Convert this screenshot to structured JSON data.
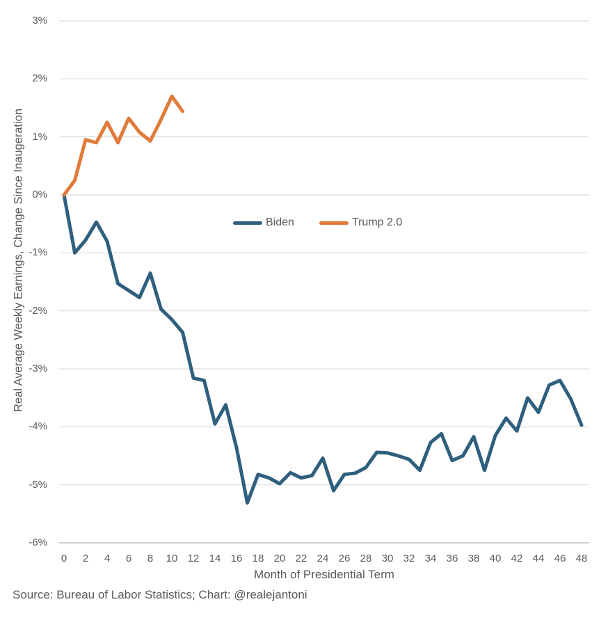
{
  "chart_data": {
    "type": "line",
    "title": "",
    "xlabel": "Month of Presidential Term",
    "ylabel": "Real Average Weekly Earnings, Change Since Inaugeration",
    "xlim": [
      0,
      48
    ],
    "ylim": [
      -6,
      3
    ],
    "grid": "horizontal-only",
    "legend_position": "inside-center",
    "y_ticks": [
      "3%",
      "2%",
      "1%",
      "0%",
      "-1%",
      "-2%",
      "-3%",
      "-4%",
      "-5%",
      "-6%"
    ],
    "y_tick_values": [
      3,
      2,
      1,
      0,
      -1,
      -2,
      -3,
      -4,
      -5,
      -6
    ],
    "x_ticks": [
      0,
      2,
      4,
      6,
      8,
      10,
      12,
      14,
      16,
      18,
      20,
      22,
      24,
      26,
      28,
      30,
      32,
      34,
      36,
      38,
      40,
      42,
      44,
      46,
      48
    ],
    "series": [
      {
        "name": "Biden",
        "color": "#2E5F7E",
        "x": [
          0,
          1,
          2,
          3,
          4,
          5,
          6,
          7,
          8,
          9,
          10,
          11,
          12,
          13,
          14,
          15,
          16,
          17,
          18,
          19,
          20,
          21,
          22,
          23,
          24,
          25,
          26,
          27,
          28,
          29,
          30,
          31,
          32,
          33,
          34,
          35,
          36,
          37,
          38,
          39,
          40,
          41,
          42,
          43,
          44,
          45,
          46,
          47,
          48
        ],
        "values": [
          0.0,
          -1.0,
          -0.78,
          -0.47,
          -0.8,
          -1.53,
          -1.65,
          -1.77,
          -1.35,
          -1.97,
          -2.15,
          -2.37,
          -3.16,
          -3.2,
          -3.95,
          -3.62,
          -4.36,
          -5.31,
          -4.82,
          -4.88,
          -4.98,
          -4.79,
          -4.88,
          -4.84,
          -4.54,
          -5.1,
          -4.82,
          -4.8,
          -4.7,
          -4.44,
          -4.45,
          -4.5,
          -4.56,
          -4.75,
          -4.27,
          -4.12,
          -4.58,
          -4.5,
          -4.17,
          -4.75,
          -4.15,
          -3.85,
          -4.07,
          -3.5,
          -3.75,
          -3.28,
          -3.2,
          -3.52,
          -3.97
        ]
      },
      {
        "name": "Trump 2.0",
        "color": "#E07B39",
        "x": [
          0,
          1,
          2,
          3,
          4,
          5,
          6,
          7,
          8,
          9,
          10,
          11
        ],
        "values": [
          0.0,
          0.25,
          0.95,
          0.9,
          1.25,
          0.9,
          1.32,
          1.08,
          0.93,
          1.3,
          1.7,
          1.44
        ]
      }
    ]
  },
  "footer": {
    "source": "Source: Bureau of Labor Statistics; Chart: @realejantoni"
  },
  "colors": {
    "background": "#FFFFFF",
    "gridline": "#D9D9D9",
    "axis_line": "#BFBFBF",
    "text": "#595959",
    "biden_line": "#2E5F7E",
    "trump_line": "#E07B39"
  }
}
